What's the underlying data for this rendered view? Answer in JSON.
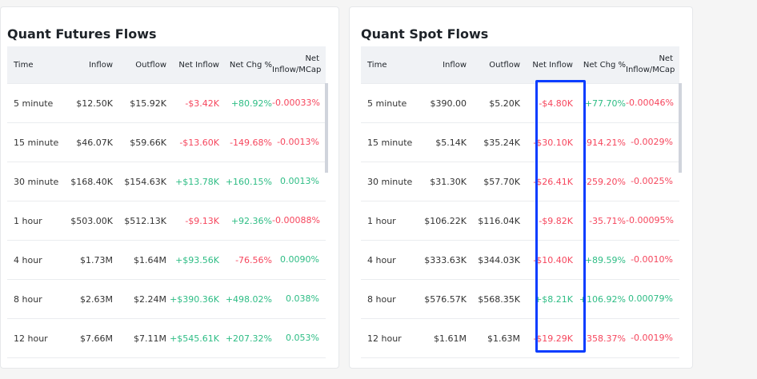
{
  "headers": [
    "Time",
    "Inflow",
    "Outflow",
    "Net Inflow",
    "Net Chg %",
    "Net Inflow/MCap"
  ],
  "colors": {
    "positive": "#2ebd85",
    "negative": "#f6465d",
    "highlight": "#0a3dff"
  },
  "futures": {
    "title": "Quant Futures Flows",
    "rows": [
      [
        "5 minute",
        "$12.50K",
        "$15.92K",
        "-$3.42K",
        "+80.92%",
        "-0.00033%"
      ],
      [
        "15 minute",
        "$46.07K",
        "$59.66K",
        "-$13.60K",
        "-149.68%",
        "-0.0013%"
      ],
      [
        "30 minute",
        "$168.40K",
        "$154.63K",
        "+$13.78K",
        "+160.15%",
        "0.0013%"
      ],
      [
        "1 hour",
        "$503.00K",
        "$512.13K",
        "-$9.13K",
        "+92.36%",
        "-0.00088%"
      ],
      [
        "4 hour",
        "$1.73M",
        "$1.64M",
        "+$93.56K",
        "-76.56%",
        "0.0090%"
      ],
      [
        "8 hour",
        "$2.63M",
        "$2.24M",
        "+$390.36K",
        "+498.02%",
        "0.038%"
      ],
      [
        "12 hour",
        "$7.66M",
        "$7.11M",
        "+$545.61K",
        "+207.32%",
        "0.053%"
      ]
    ]
  },
  "spot": {
    "title": "Quant Spot Flows",
    "rows": [
      [
        "5 minute",
        "$390.00",
        "$5.20K",
        "-$4.80K",
        "+77.70%",
        "-0.00046%"
      ],
      [
        "15 minute",
        "$5.14K",
        "$35.24K",
        "-$30.10K",
        "-914.21%",
        "-0.0029%"
      ],
      [
        "30 minute",
        "$31.30K",
        "$57.70K",
        "-$26.41K",
        "-259.20%",
        "-0.0025%"
      ],
      [
        "1 hour",
        "$106.22K",
        "$116.04K",
        "-$9.82K",
        "-35.71%",
        "-0.00095%"
      ],
      [
        "4 hour",
        "$333.63K",
        "$344.03K",
        "-$10.40K",
        "+89.59%",
        "-0.0010%"
      ],
      [
        "8 hour",
        "$576.57K",
        "$568.35K",
        "+$8.21K",
        "+106.92%",
        "0.00079%"
      ],
      [
        "12 hour",
        "$1.61M",
        "$1.63M",
        "-$19.29K",
        "-358.37%",
        "-0.0019%"
      ]
    ]
  }
}
